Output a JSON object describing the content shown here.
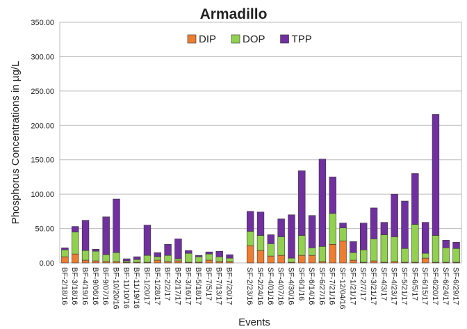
{
  "chart_data": {
    "type": "bar",
    "stacked": true,
    "title": "Armadillo",
    "x_label": "Events",
    "y_label": "Phosphorus Concentrations in µg/L",
    "categories": [
      "BF-2/18/16",
      "BF-3/18/16",
      "BF-4/19/16",
      "BF-9/06/16",
      "BF-9/07/16",
      "BF-10/20/16",
      "BF-11/10/16",
      "BF-11/19/16",
      "BF-1/20/17",
      "BF-1/28/17",
      "BF-2/2/17",
      "BF-2/17/17",
      "BF-3/16/17",
      "BF-5/18/17",
      "BF-7/5/17",
      "BF-7/13/17",
      "BF-7/20/17",
      null,
      "SF-2/23/16",
      "SF-2/24/16",
      "SF-4/01/16",
      "SF-4/07/16",
      "SF-4/30/16",
      "SF-6/1/16",
      "SF-6/14/16",
      "SF-6/27/16",
      "SF-7/21/16",
      "SF-12/04/16",
      "SF-1/21/17",
      "SF-2/7/17",
      "SF-3/21/17",
      "SF-4/3/17",
      "SF-4/23/17",
      "SF-5/21/17",
      "SF-6/5/17",
      "SF-6/15/17",
      "SF-6/20/17",
      "SF-6/24/17",
      "SF-6/29/17"
    ],
    "series": [
      {
        "name": "DIP",
        "color": "#ed7d31",
        "values": [
          9,
          13,
          4,
          3,
          2,
          2,
          1,
          1,
          1,
          4,
          2,
          3,
          1,
          1,
          4,
          2,
          2,
          null,
          25,
          18,
          10,
          11,
          1,
          11,
          11,
          2,
          27,
          32,
          4,
          1,
          3,
          1,
          2,
          1,
          1,
          7,
          1,
          1,
          1
        ]
      },
      {
        "name": "DOP",
        "color": "#92d050",
        "values": [
          10,
          32,
          14,
          14,
          10,
          13,
          2,
          4,
          10,
          5,
          9,
          3,
          13,
          8,
          9,
          7,
          5,
          null,
          21,
          22,
          18,
          27,
          6,
          29,
          11,
          22,
          45,
          19,
          11,
          18,
          32,
          40,
          36,
          20,
          55,
          7,
          39,
          21,
          20
        ]
      },
      {
        "name": "TPP",
        "color": "#7030a0",
        "values": [
          3,
          8,
          44,
          3,
          55,
          78,
          3,
          4,
          44,
          6,
          16,
          29,
          4,
          2,
          3,
          8,
          5,
          null,
          29,
          34,
          13,
          26,
          63,
          94,
          47,
          127,
          53,
          7,
          16,
          39,
          45,
          18,
          62,
          69,
          74,
          45,
          176,
          11,
          9
        ]
      }
    ],
    "ylim": [
      0,
      350
    ],
    "yticks": [
      {
        "value": 0,
        "label": "0.00"
      },
      {
        "value": 50,
        "label": "50.00"
      },
      {
        "value": 100,
        "label": "100.00"
      },
      {
        "value": 150,
        "label": "150.00"
      },
      {
        "value": 200,
        "label": "200.00"
      },
      {
        "value": 250,
        "label": "250.00"
      },
      {
        "value": 300,
        "label": "300.00"
      },
      {
        "value": 350,
        "label": "350.00"
      }
    ],
    "grid": true,
    "legend": "top"
  }
}
